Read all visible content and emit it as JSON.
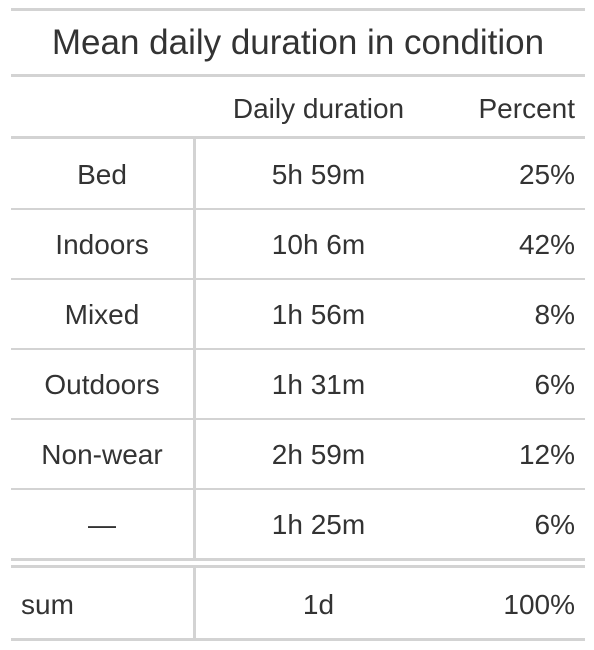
{
  "title": "Mean daily duration in condition",
  "columns": [
    "",
    "Daily duration",
    "Percent"
  ],
  "rows": [
    {
      "label": "Bed",
      "duration": "5h 59m",
      "percent": "25%"
    },
    {
      "label": "Indoors",
      "duration": "10h 6m",
      "percent": "42%"
    },
    {
      "label": "Mixed",
      "duration": "1h 56m",
      "percent": "8%"
    },
    {
      "label": "Outdoors",
      "duration": "1h 31m",
      "percent": "6%"
    },
    {
      "label": "Non-wear",
      "duration": "2h 59m",
      "percent": "12%"
    },
    {
      "label": "—",
      "duration": "1h 25m",
      "percent": "6%"
    }
  ],
  "summary": {
    "label": "sum",
    "duration": "1d",
    "percent": "100%"
  },
  "colors": {
    "text": "#333333",
    "rule": "#d3d3d3",
    "background": "#ffffff"
  }
}
